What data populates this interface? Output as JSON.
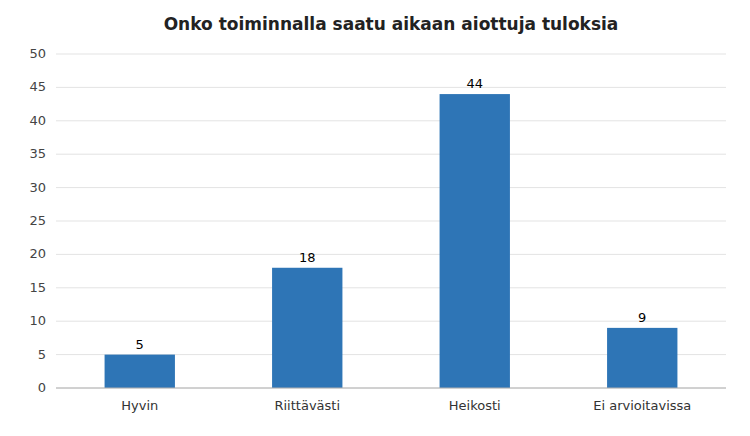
{
  "chart_data": {
    "type": "bar",
    "title": "Onko toiminnalla saatu aikaan aiottuja tuloksia",
    "categories": [
      "Hyvin",
      "Riittävästi",
      "Heikosti",
      "Ei arvioitavissa"
    ],
    "values": [
      5,
      18,
      44,
      9
    ],
    "color": "#2E75B6",
    "ylim": [
      0,
      50
    ],
    "yticks": [
      0,
      5,
      10,
      15,
      20,
      25,
      30,
      35,
      40,
      45,
      50
    ],
    "grid": true,
    "data_labels": true
  }
}
